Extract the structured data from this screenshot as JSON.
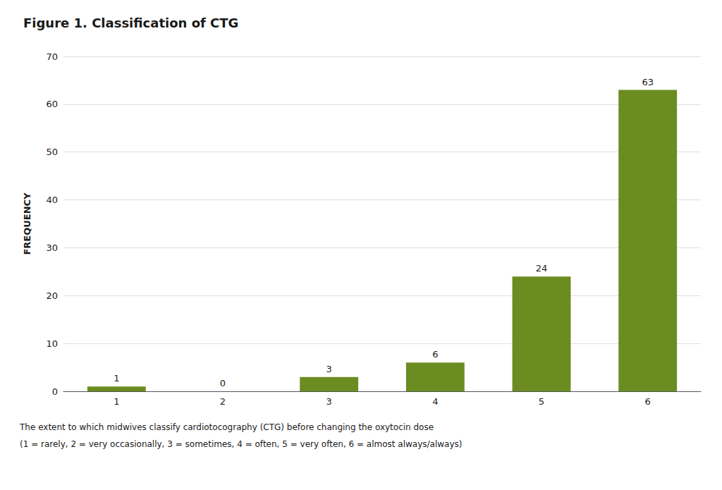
{
  "chart_data": {
    "type": "bar",
    "title": "Figure 1. Classification of CTG",
    "categories": [
      1,
      2,
      3,
      4,
      5,
      6
    ],
    "values": [
      1,
      0,
      3,
      6,
      24,
      63
    ],
    "color": "#6b8c21",
    "ylabel": "FREQUENCY",
    "ylim": [
      0,
      70
    ],
    "yticks": [
      0,
      10,
      20,
      30,
      40,
      50,
      60,
      70
    ],
    "grid": true,
    "data_labels": true,
    "annotations": [
      "The extent to which midwives classify cardiotocography (CTG) before changing the oxytocin dose",
      "(1 = rarely, 2 = very occasionally, 3 = sometimes, 4 = often, 5 = very often, 6 = almost always/always)"
    ]
  }
}
